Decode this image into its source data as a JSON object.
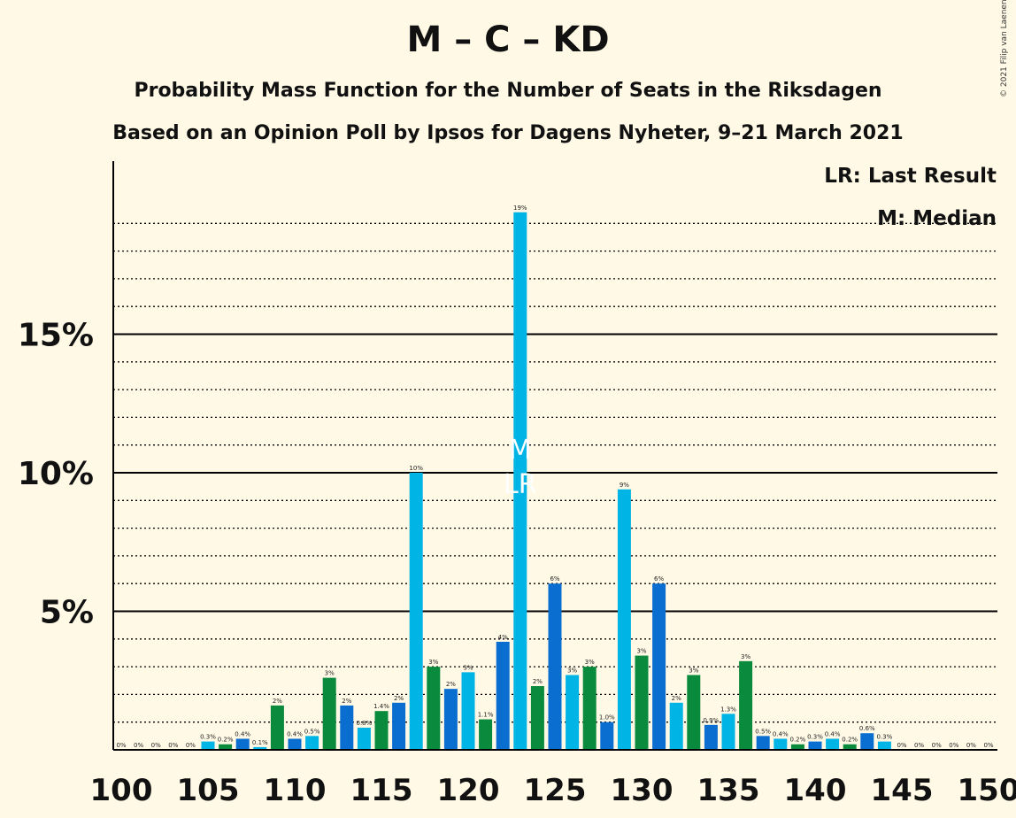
{
  "title": "M – C – KD",
  "subtitle1": "Probability Mass Function for the Number of Seats in the Riksdagen",
  "subtitle2": "Based on an Opinion Poll by Ipsos for Dagens Nyheter, 9–21 March 2021",
  "copyright": "© 2021 Filip van Laenen",
  "legend": {
    "lr": "LR: Last Result",
    "m": "M: Median"
  },
  "markers": {
    "median_label": "M",
    "last_result_label": "LR",
    "median_seat": 123,
    "last_result_seat": 123
  },
  "colors": {
    "background": "#fff9e6",
    "sky": "#00b4e6",
    "blue": "#0a6ed1",
    "green": "#0a8a3c"
  },
  "chart_data": {
    "type": "bar",
    "xlim": [
      100,
      150
    ],
    "ylim": [
      0,
      19.5
    ],
    "x_ticks": [
      "100",
      "105",
      "110",
      "115",
      "120",
      "125",
      "130",
      "135",
      "140",
      "145",
      "150"
    ],
    "y_ticks": [
      {
        "value": 5,
        "label": "5%"
      },
      {
        "value": 10,
        "label": "10%"
      },
      {
        "value": 15,
        "label": "15%"
      }
    ],
    "minor_gridlines_every": 1,
    "grid": true,
    "bars": [
      {
        "seat": 100,
        "value": 0,
        "label": "0%",
        "color": "sky"
      },
      {
        "seat": 101,
        "value": 0,
        "label": "0%",
        "color": "blue"
      },
      {
        "seat": 102,
        "value": 0,
        "label": "0%",
        "color": "green"
      },
      {
        "seat": 103,
        "value": 0,
        "label": "0%",
        "color": "sky"
      },
      {
        "seat": 104,
        "value": 0,
        "label": "0%",
        "color": "blue"
      },
      {
        "seat": 105,
        "value": 0.3,
        "label": "0.3%",
        "color": "sky"
      },
      {
        "seat": 106,
        "value": 0.2,
        "label": "0.2%",
        "color": "green"
      },
      {
        "seat": 107,
        "value": 0.4,
        "label": "0.4%",
        "color": "blue"
      },
      {
        "seat": 108,
        "value": 0.1,
        "label": "0.1%",
        "color": "sky"
      },
      {
        "seat": 109,
        "value": 1.6,
        "label": "2%",
        "color": "green"
      },
      {
        "seat": 110,
        "value": 0.4,
        "label": "0.4%",
        "color": "blue"
      },
      {
        "seat": 111,
        "value": 0.5,
        "label": "0.5%",
        "color": "sky"
      },
      {
        "seat": 112,
        "value": 2.6,
        "label": "3%",
        "color": "green"
      },
      {
        "seat": 113,
        "value": 1.6,
        "label": "2%",
        "color": "blue"
      },
      {
        "seat": 114,
        "value": 0.8,
        "label": "0.8%",
        "color": "sky"
      },
      {
        "seat": 115,
        "value": 1.4,
        "label": "1.4%",
        "color": "green"
      },
      {
        "seat": 116,
        "value": 1.7,
        "label": "2%",
        "color": "blue"
      },
      {
        "seat": 117,
        "value": 10.0,
        "label": "10%",
        "color": "sky"
      },
      {
        "seat": 118,
        "value": 3.0,
        "label": "3%",
        "color": "green"
      },
      {
        "seat": 119,
        "value": 2.2,
        "label": "2%",
        "color": "blue"
      },
      {
        "seat": 120,
        "value": 2.8,
        "label": "3%",
        "color": "sky"
      },
      {
        "seat": 121,
        "value": 1.1,
        "label": "1.1%",
        "color": "green"
      },
      {
        "seat": 122,
        "value": 3.9,
        "label": "4%",
        "color": "blue"
      },
      {
        "seat": 123,
        "value": 19.4,
        "label": "19%",
        "color": "sky"
      },
      {
        "seat": 124,
        "value": 2.3,
        "label": "2%",
        "color": "green"
      },
      {
        "seat": 125,
        "value": 6.0,
        "label": "6%",
        "color": "blue"
      },
      {
        "seat": 126,
        "value": 2.7,
        "label": "3%",
        "color": "sky"
      },
      {
        "seat": 127,
        "value": 3.0,
        "label": "3%",
        "color": "green"
      },
      {
        "seat": 128,
        "value": 1.0,
        "label": "1.0%",
        "color": "blue"
      },
      {
        "seat": 129,
        "value": 9.4,
        "label": "9%",
        "color": "sky"
      },
      {
        "seat": 130,
        "value": 3.4,
        "label": "3%",
        "color": "green"
      },
      {
        "seat": 131,
        "value": 6.0,
        "label": "6%",
        "color": "blue"
      },
      {
        "seat": 132,
        "value": 1.7,
        "label": "2%",
        "color": "sky"
      },
      {
        "seat": 133,
        "value": 2.7,
        "label": "3%",
        "color": "green"
      },
      {
        "seat": 134,
        "value": 0.9,
        "label": "0.9%",
        "color": "blue"
      },
      {
        "seat": 135,
        "value": 1.3,
        "label": "1.3%",
        "color": "sky"
      },
      {
        "seat": 136,
        "value": 3.2,
        "label": "3%",
        "color": "green"
      },
      {
        "seat": 137,
        "value": 0.5,
        "label": "0.5%",
        "color": "blue"
      },
      {
        "seat": 138,
        "value": 0.4,
        "label": "0.4%",
        "color": "sky"
      },
      {
        "seat": 139,
        "value": 0.2,
        "label": "0.2%",
        "color": "green"
      },
      {
        "seat": 140,
        "value": 0.3,
        "label": "0.3%",
        "color": "blue"
      },
      {
        "seat": 141,
        "value": 0.4,
        "label": "0.4%",
        "color": "sky"
      },
      {
        "seat": 142,
        "value": 0.2,
        "label": "0.2%",
        "color": "green"
      },
      {
        "seat": 143,
        "value": 0.6,
        "label": "0.6%",
        "color": "blue"
      },
      {
        "seat": 144,
        "value": 0.3,
        "label": "0.3%",
        "color": "sky"
      },
      {
        "seat": 145,
        "value": 0,
        "label": "0%",
        "color": "green"
      },
      {
        "seat": 146,
        "value": 0,
        "label": "0%",
        "color": "blue"
      },
      {
        "seat": 147,
        "value": 0,
        "label": "0%",
        "color": "sky"
      },
      {
        "seat": 148,
        "value": 0,
        "label": "0%",
        "color": "green"
      },
      {
        "seat": 149,
        "value": 0,
        "label": "0%",
        "color": "blue"
      },
      {
        "seat": 150,
        "value": 0,
        "label": "0%",
        "color": "sky"
      }
    ]
  }
}
